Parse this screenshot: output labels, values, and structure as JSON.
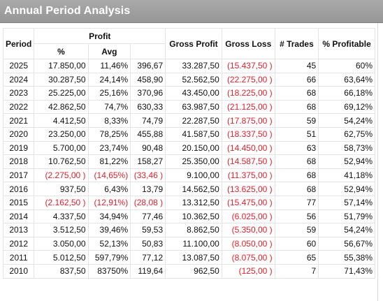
{
  "window": {
    "title": "Annual Period Analysis"
  },
  "headers": {
    "period": "Period",
    "profit": "Profit",
    "pct": "%",
    "avg": "Avg",
    "gross_profit": "Gross Profit",
    "gross_loss": "Gross Loss",
    "trades": "# Trades",
    "pct_profitable": "% Profitable"
  },
  "colors": {
    "negative": "#e0202a",
    "titlebar": "#a0a0a0"
  },
  "rows": [
    {
      "period": "2025",
      "profit": "17.850,00",
      "pct": "11,46%",
      "avg": "396,67",
      "gross_profit": "33.287,50",
      "gross_loss": "(15.437,50 )",
      "trades": "45",
      "pct_profitable": "60%",
      "neg": false
    },
    {
      "period": "2024",
      "profit": "30.287,50",
      "pct": "24,14%",
      "avg": "458,90",
      "gross_profit": "52.562,50",
      "gross_loss": "(22.275,00 )",
      "trades": "66",
      "pct_profitable": "63,64%",
      "neg": false
    },
    {
      "period": "2023",
      "profit": "25.225,00",
      "pct": "25,16%",
      "avg": "370,96",
      "gross_profit": "43.450,00",
      "gross_loss": "(18.225,00 )",
      "trades": "68",
      "pct_profitable": "66,18%",
      "neg": false
    },
    {
      "period": "2022",
      "profit": "42.862,50",
      "pct": "74,7%",
      "avg": "630,33",
      "gross_profit": "63.987,50",
      "gross_loss": "(21.125,00 )",
      "trades": "68",
      "pct_profitable": "69,12%",
      "neg": false
    },
    {
      "period": "2021",
      "profit": "4.412,50",
      "pct": "8,33%",
      "avg": "74,79",
      "gross_profit": "22.287,50",
      "gross_loss": "(17.875,00 )",
      "trades": "59",
      "pct_profitable": "54,24%",
      "neg": false
    },
    {
      "period": "2020",
      "profit": "23.250,00",
      "pct": "78,25%",
      "avg": "455,88",
      "gross_profit": "41.587,50",
      "gross_loss": "(18.337,50 )",
      "trades": "51",
      "pct_profitable": "62,75%",
      "neg": false
    },
    {
      "period": "2019",
      "profit": "5.700,00",
      "pct": "23,74%",
      "avg": "90,48",
      "gross_profit": "20.150,00",
      "gross_loss": "(14.450,00 )",
      "trades": "63",
      "pct_profitable": "58,73%",
      "neg": false
    },
    {
      "period": "2018",
      "profit": "10.762,50",
      "pct": "81,22%",
      "avg": "158,27",
      "gross_profit": "25.350,00",
      "gross_loss": "(14.587,50 )",
      "trades": "68",
      "pct_profitable": "52,94%",
      "neg": false
    },
    {
      "period": "2017",
      "profit": "(2.275,00 )",
      "pct": "(14,65%)",
      "avg": "(33,46 )",
      "gross_profit": "9.100,00",
      "gross_loss": "(11.375,00 )",
      "trades": "68",
      "pct_profitable": "41,18%",
      "neg": true
    },
    {
      "period": "2016",
      "profit": "937,50",
      "pct": "6,43%",
      "avg": "13,79",
      "gross_profit": "14.562,50",
      "gross_loss": "(13.625,00 )",
      "trades": "68",
      "pct_profitable": "52,94%",
      "neg": false
    },
    {
      "period": "2015",
      "profit": "(2.162,50 )",
      "pct": "(12,91%)",
      "avg": "(28,08 )",
      "gross_profit": "13.312,50",
      "gross_loss": "(15.475,00 )",
      "trades": "77",
      "pct_profitable": "57,14%",
      "neg": true
    },
    {
      "period": "2014",
      "profit": "4.337,50",
      "pct": "34,94%",
      "avg": "77,46",
      "gross_profit": "10.362,50",
      "gross_loss": "(6.025,00 )",
      "trades": "56",
      "pct_profitable": "51,79%",
      "neg": false
    },
    {
      "period": "2013",
      "profit": "3.512,50",
      "pct": "39,46%",
      "avg": "59,53",
      "gross_profit": "8.862,50",
      "gross_loss": "(5.350,00 )",
      "trades": "59",
      "pct_profitable": "54,24%",
      "neg": false
    },
    {
      "period": "2012",
      "profit": "3.050,00",
      "pct": "52,13%",
      "avg": "50,83",
      "gross_profit": "11.100,00",
      "gross_loss": "(8.050,00 )",
      "trades": "60",
      "pct_profitable": "56,67%",
      "neg": false
    },
    {
      "period": "2011",
      "profit": "5.012,50",
      "pct": "597,79%",
      "avg": "77,12",
      "gross_profit": "13.087,50",
      "gross_loss": "(8.075,00 )",
      "trades": "65",
      "pct_profitable": "55,38%",
      "neg": false
    },
    {
      "period": "2010",
      "profit": "837,50",
      "pct": "83750%",
      "avg": "119,64",
      "gross_profit": "962,50",
      "gross_loss": "(125,00 )",
      "trades": "7",
      "pct_profitable": "71,43%",
      "neg": false
    }
  ]
}
